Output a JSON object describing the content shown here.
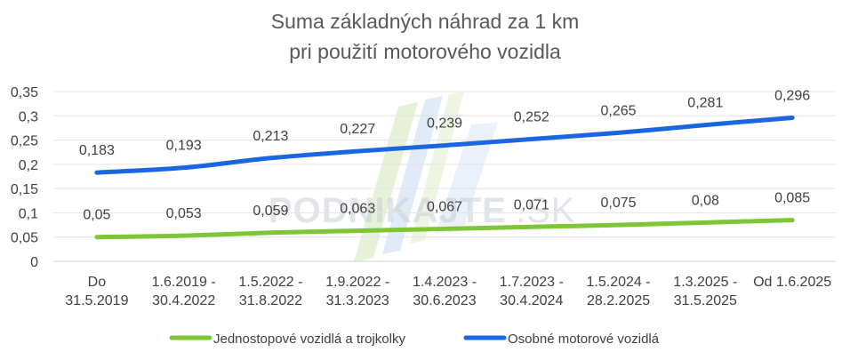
{
  "watermark": {
    "brand": "PODNIKAJTE",
    "suffix": ".SK"
  },
  "chart_data": {
    "type": "line",
    "title_line1": "Suma základných náhrad za 1 km",
    "title_line2": "pri použití motorového vozidla",
    "categories": [
      [
        "Do",
        "31.5.2019"
      ],
      [
        "1.6.2019 -",
        "30.4.2022"
      ],
      [
        "1.5.2022 -",
        "31.8.2022"
      ],
      [
        "1.9.2022 -",
        "31.3.2023"
      ],
      [
        "1.4.2023 -",
        "30.6.2023"
      ],
      [
        "1.7.2023 -",
        "30.4.2024"
      ],
      [
        "1.5.2024 -",
        "28.2.2025"
      ],
      [
        "1.3.2025 -",
        "31.5.2025"
      ],
      [
        "Od 1.6.2025"
      ]
    ],
    "y_ticks": [
      "0",
      "0,05",
      "0,1",
      "0,15",
      "0,2",
      "0,25",
      "0,3",
      "0,35"
    ],
    "ylim": [
      0,
      0.35
    ],
    "grid": true,
    "legend_position": "bottom",
    "series": [
      {
        "name": "Jednostopové vozidlá a trojkolky",
        "color": "#7ec636",
        "values": [
          0.05,
          0.053,
          0.059,
          0.063,
          0.067,
          0.071,
          0.075,
          0.08,
          0.085
        ],
        "labels": [
          "0,05",
          "0,053",
          "0,059",
          "0,063",
          "0,067",
          "0,071",
          "0,075",
          "0,08",
          "0,085"
        ]
      },
      {
        "name": "Osobné motorové vozidlá",
        "color": "#1a66e0",
        "values": [
          0.183,
          0.193,
          0.213,
          0.227,
          0.239,
          0.252,
          0.265,
          0.281,
          0.296
        ],
        "labels": [
          "0,183",
          "0,193",
          "0,213",
          "0,227",
          "0,239",
          "0,252",
          "0,265",
          "0,281",
          "0,296"
        ]
      }
    ]
  }
}
